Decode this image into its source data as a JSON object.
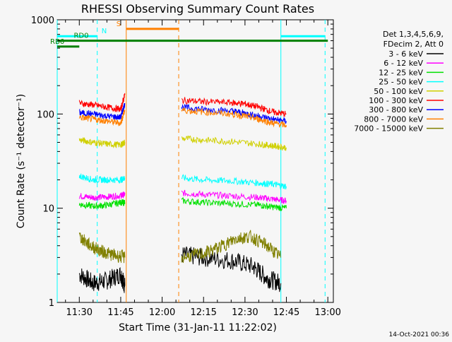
{
  "chart_data": {
    "type": "line",
    "title": "RHESSI Observing Summary Count Rates",
    "xlabel": "Start Time (31-Jan-11 11:22:02)",
    "ylabel": "Count Rate (s⁻¹ detector⁻¹)",
    "y_scale": "log",
    "ylim": [
      1,
      1000
    ],
    "xlim": [
      "11:22",
      "13:02"
    ],
    "x_ticks": [
      "11:30",
      "11:45",
      "12:00",
      "12:15",
      "12:30",
      "12:45",
      "13:00"
    ],
    "y_ticks": [
      "1",
      "10",
      "100",
      "1000"
    ],
    "footer": "14-Oct-2021 00:36",
    "legend_header": [
      "Det 1,3,4,5,6,9,",
      "FDecim 2, Att 0"
    ],
    "legend_position": "right",
    "series": [
      {
        "name": "3 - 6 keV",
        "color": "#000000",
        "segments": [
          {
            "x": [
              "11:30",
              "11:35",
              "11:40",
              "11:45",
              "11:46:30"
            ],
            "y": [
              2,
              1.6,
              1.7,
              2,
              1.5
            ]
          },
          {
            "x": [
              "12:07",
              "12:15",
              "12:25",
              "12:33",
              "12:38",
              "12:43"
            ],
            "y": [
              3.2,
              3,
              2.8,
              2.4,
              1.8,
              1.6
            ]
          }
        ]
      },
      {
        "name": "6 - 12 keV",
        "color": "#ff00ff",
        "segments": [
          {
            "x": [
              "11:30",
              "11:35",
              "11:40",
              "11:45",
              "11:46:30"
            ],
            "y": [
              13.5,
              13,
              13.2,
              13.6,
              14
            ]
          },
          {
            "x": [
              "12:07",
              "12:15",
              "12:25",
              "12:35",
              "12:40",
              "12:45"
            ],
            "y": [
              14.5,
              14,
              13.5,
              13,
              12.5,
              12
            ]
          }
        ]
      },
      {
        "name": "12 - 25 keV",
        "color": "#00e000",
        "segments": [
          {
            "x": [
              "11:30",
              "11:35",
              "11:40",
              "11:45",
              "11:46:30"
            ],
            "y": [
              11,
              10.5,
              10.8,
              11.5,
              11.5
            ]
          },
          {
            "x": [
              "12:07",
              "12:15",
              "12:25",
              "12:35",
              "12:40",
              "12:45"
            ],
            "y": [
              12,
              11.5,
              11.2,
              10.8,
              10.3,
              10
            ]
          }
        ]
      },
      {
        "name": "25 - 50 keV",
        "color": "#00ffff",
        "segments": [
          {
            "x": [
              "11:30",
              "11:35",
              "11:40",
              "11:45",
              "11:46:30"
            ],
            "y": [
              22,
              20,
              20,
              20,
              21
            ]
          },
          {
            "x": [
              "12:07",
              "12:15",
              "12:25",
              "12:35",
              "12:40",
              "12:45"
            ],
            "y": [
              21,
              20,
              19.5,
              18.5,
              18,
              17
            ]
          }
        ]
      },
      {
        "name": "50 - 100 keV",
        "color": "#d0d000",
        "segments": [
          {
            "x": [
              "11:30",
              "11:35",
              "11:40",
              "11:45",
              "11:46:30"
            ],
            "y": [
              53,
              50,
              48,
              47,
              50
            ]
          },
          {
            "x": [
              "12:07",
              "12:15",
              "12:25",
              "12:35",
              "12:40",
              "12:45"
            ],
            "y": [
              55,
              53,
              51,
              48,
              46,
              44
            ]
          }
        ]
      },
      {
        "name": "100 - 300 keV",
        "color": "#ff0000",
        "segments": [
          {
            "x": [
              "11:30",
              "11:35",
              "11:40",
              "11:45",
              "11:46:30"
            ],
            "y": [
              130,
              125,
              118,
              112,
              160
            ]
          },
          {
            "x": [
              "12:07",
              "12:15",
              "12:25",
              "12:30",
              "12:35",
              "12:40",
              "12:45"
            ],
            "y": [
              140,
              135,
              132,
              128,
              118,
              105,
              100
            ]
          }
        ]
      },
      {
        "name": "300 - 800 keV",
        "color": "#0000ff",
        "segments": [
          {
            "x": [
              "11:30",
              "11:35",
              "11:40",
              "11:45",
              "11:46:30"
            ],
            "y": [
              103,
              100,
              95,
              92,
              130
            ]
          },
          {
            "x": [
              "12:07",
              "12:15",
              "12:25",
              "12:30",
              "12:35",
              "12:40",
              "12:45"
            ],
            "y": [
              118,
              112,
              108,
              102,
              95,
              88,
              84
            ]
          }
        ]
      },
      {
        "name": "800 - 7000 keV",
        "color": "#ff8000",
        "segments": [
          {
            "x": [
              "11:30",
              "11:35",
              "11:40",
              "11:45",
              "11:46:30"
            ],
            "y": [
              92,
              88,
              84,
              80,
              110
            ]
          },
          {
            "x": [
              "12:07",
              "12:15",
              "12:25",
              "12:30",
              "12:35",
              "12:40",
              "12:45"
            ],
            "y": [
              110,
              105,
              100,
              95,
              88,
              80,
              76
            ]
          }
        ]
      },
      {
        "name": "7000 - 15000 keV",
        "color": "#808000",
        "segments": [
          {
            "x": [
              "11:30",
              "11:34",
              "11:38",
              "11:42",
              "11:46:30"
            ],
            "y": [
              5,
              4,
              3.5,
              3.2,
              3
            ]
          },
          {
            "x": [
              "12:07",
              "12:15",
              "12:22",
              "12:27",
              "12:32",
              "12:38",
              "12:43"
            ],
            "y": [
              3,
              3.3,
              4,
              4.8,
              5,
              4,
              3
            ]
          }
        ]
      }
    ],
    "flag_bars": [
      {
        "label": "N",
        "color": "#00ffff",
        "level": 670,
        "segments": [
          [
            "11:22",
            "11:36:30"
          ],
          [
            "12:43",
            "12:59"
          ]
        ],
        "dashed_marks": [
          "11:36:30",
          "12:59"
        ],
        "solid_marks": [
          "11:22",
          "12:43"
        ]
      },
      {
        "label": "S",
        "color": "#ff8000",
        "level": 800,
        "segments": [
          [
            "11:47",
            "12:06"
          ]
        ],
        "dashed_marks": [
          "12:06"
        ],
        "solid_marks": [
          "11:47"
        ]
      },
      {
        "label": "RD0",
        "color": "#008000",
        "level": 600,
        "segments": [
          [
            "11:22",
            "13:00"
          ]
        ]
      },
      {
        "label": "RB6",
        "color": "#008000",
        "level": 520,
        "segments": [
          [
            "11:22",
            "11:30"
          ]
        ]
      }
    ]
  }
}
